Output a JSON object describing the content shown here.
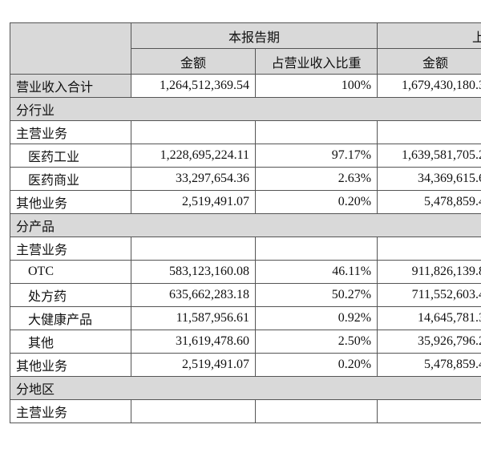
{
  "header": {
    "current_period": "本报告期",
    "previous_period": "上",
    "amount": "金额",
    "ratio": "占营业收入比重",
    "previous_amount": "金额"
  },
  "rows": [
    [
      "营业收入合计",
      "1,264,512,369.54",
      "100%",
      "1,679,430,180.3"
    ],
    [
      "分行业"
    ],
    [
      "主营业务"
    ],
    [
      "医药工业",
      "1,228,695,224.11",
      "97.17%",
      "1,639,581,705.2"
    ],
    [
      "医药商业",
      "33,297,654.36",
      "2.63%",
      "34,369,615.6"
    ],
    [
      "其他业务",
      "2,519,491.07",
      "0.20%",
      "5,478,859.4"
    ],
    [
      "分产品"
    ],
    [
      "主营业务"
    ],
    [
      "OTC",
      "583,123,160.08",
      "46.11%",
      "911,826,139.8"
    ],
    [
      "处方药",
      "635,662,283.18",
      "50.27%",
      "711,552,603.4"
    ],
    [
      "大健康产品",
      "11,587,956.61",
      "0.92%",
      "14,645,781.3"
    ],
    [
      "其他",
      "31,619,478.60",
      "2.50%",
      "35,926,796.2"
    ],
    [
      "其他业务",
      "2,519,491.07",
      "0.20%",
      "5,478,859.4"
    ],
    [
      "分地区"
    ],
    [
      "主营业务"
    ]
  ]
}
